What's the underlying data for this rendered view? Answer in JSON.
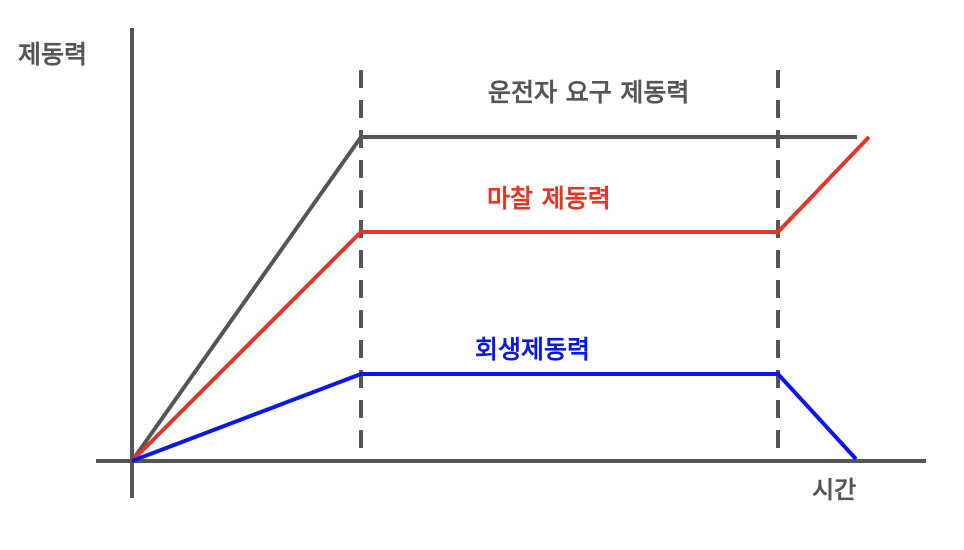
{
  "axes": {
    "y_label": "제동력",
    "x_label": "시간",
    "axis_color": "#555555"
  },
  "annotations": {
    "driver_demand": "운전자 요구 제동력",
    "friction": "마찰 제동력",
    "regen": "회생제동력"
  },
  "series": [
    {
      "key": "driver",
      "name": "운전자 요구 제동력",
      "color": "#555555"
    },
    {
      "key": "friction",
      "name": "마찰 제동력",
      "color": "#e53528"
    },
    {
      "key": "regen",
      "name": "회생제동력",
      "color": "#0a18e6"
    }
  ]
}
